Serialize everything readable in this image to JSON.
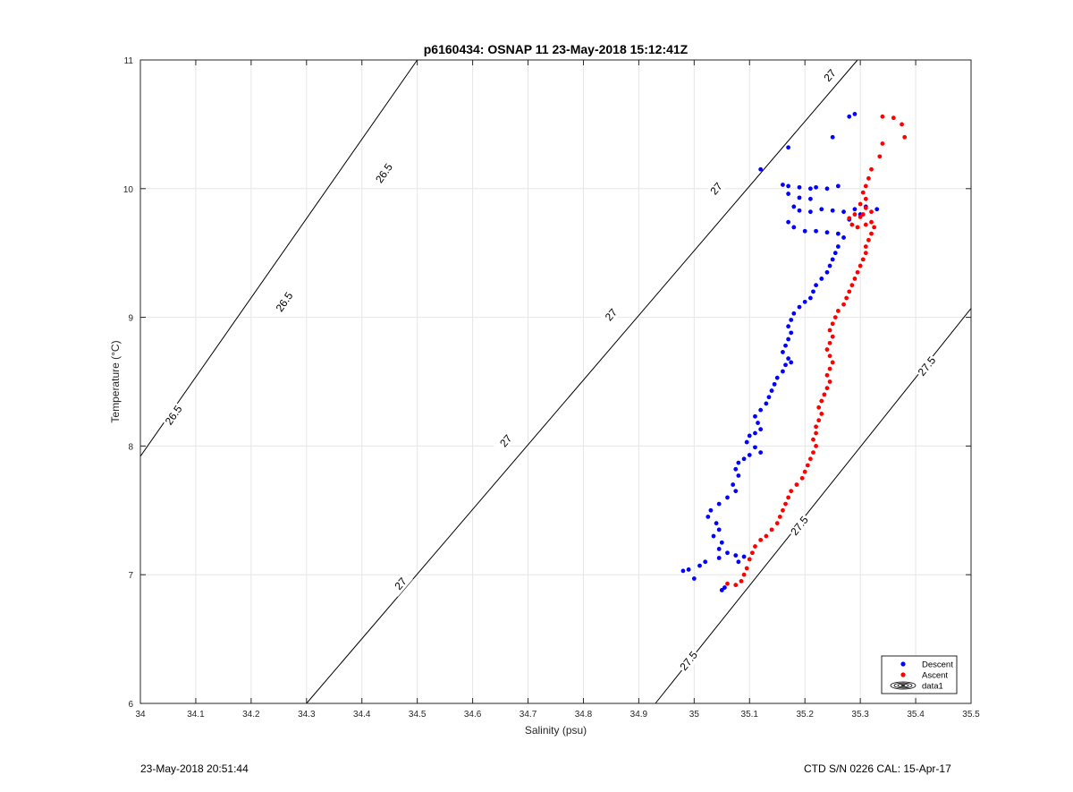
{
  "chart_data": {
    "type": "scatter",
    "title": "p6160434: OSNAP 11 23-May-2018 15:12:41Z",
    "xlabel": "Salinity (psu)",
    "ylabel": "Temperature (°C)",
    "xlim": [
      34,
      35.5
    ],
    "ylim": [
      6,
      11
    ],
    "xticks": [
      "34",
      "34.1",
      "34.2",
      "34.3",
      "34.4",
      "34.5",
      "34.6",
      "34.7",
      "34.8",
      "34.9",
      "35",
      "35.1",
      "35.2",
      "35.3",
      "35.4",
      "35.5"
    ],
    "yticks": [
      "6",
      "7",
      "8",
      "9",
      "10",
      "11"
    ],
    "grid": true,
    "legend_position": "bottom-right",
    "series": [
      {
        "name": "Descent",
        "color": "#0000ff",
        "marker": "dot",
        "points": [
          [
            35.29,
            10.58
          ],
          [
            35.28,
            10.56
          ],
          [
            35.25,
            10.4
          ],
          [
            35.17,
            10.32
          ],
          [
            35.12,
            10.15
          ],
          [
            35.16,
            10.03
          ],
          [
            35.17,
            10.02
          ],
          [
            35.19,
            10.01
          ],
          [
            35.21,
            10.0
          ],
          [
            35.22,
            10.01
          ],
          [
            35.24,
            10.0
          ],
          [
            35.26,
            10.02
          ],
          [
            35.17,
            9.96
          ],
          [
            35.19,
            9.93
          ],
          [
            35.21,
            9.92
          ],
          [
            35.18,
            9.86
          ],
          [
            35.19,
            9.83
          ],
          [
            35.21,
            9.82
          ],
          [
            35.23,
            9.84
          ],
          [
            35.25,
            9.83
          ],
          [
            35.27,
            9.82
          ],
          [
            35.29,
            9.84
          ],
          [
            35.31,
            9.86
          ],
          [
            35.33,
            9.84
          ],
          [
            35.3,
            9.8
          ],
          [
            35.28,
            9.76
          ],
          [
            35.17,
            9.74
          ],
          [
            35.18,
            9.7
          ],
          [
            35.2,
            9.67
          ],
          [
            35.22,
            9.67
          ],
          [
            35.24,
            9.66
          ],
          [
            35.26,
            9.65
          ],
          [
            35.27,
            9.62
          ],
          [
            35.26,
            9.55
          ],
          [
            35.255,
            9.5
          ],
          [
            35.25,
            9.45
          ],
          [
            35.245,
            9.4
          ],
          [
            35.24,
            9.35
          ],
          [
            35.23,
            9.3
          ],
          [
            35.22,
            9.25
          ],
          [
            35.215,
            9.2
          ],
          [
            35.21,
            9.15
          ],
          [
            35.2,
            9.12
          ],
          [
            35.19,
            9.08
          ],
          [
            35.18,
            9.03
          ],
          [
            35.175,
            8.98
          ],
          [
            35.17,
            8.93
          ],
          [
            35.175,
            8.88
          ],
          [
            35.17,
            8.83
          ],
          [
            35.165,
            8.78
          ],
          [
            35.16,
            8.73
          ],
          [
            35.17,
            8.68
          ],
          [
            35.175,
            8.65
          ],
          [
            35.165,
            8.63
          ],
          [
            35.16,
            8.58
          ],
          [
            35.15,
            8.53
          ],
          [
            35.145,
            8.48
          ],
          [
            35.14,
            8.43
          ],
          [
            35.135,
            8.38
          ],
          [
            35.13,
            8.33
          ],
          [
            35.12,
            8.28
          ],
          [
            35.11,
            8.23
          ],
          [
            35.115,
            8.18
          ],
          [
            35.12,
            8.13
          ],
          [
            35.11,
            8.1
          ],
          [
            35.1,
            8.08
          ],
          [
            35.095,
            8.03
          ],
          [
            35.11,
            7.99
          ],
          [
            35.12,
            7.95
          ],
          [
            35.1,
            7.93
          ],
          [
            35.09,
            7.9
          ],
          [
            35.08,
            7.87
          ],
          [
            35.075,
            7.82
          ],
          [
            35.08,
            7.77
          ],
          [
            35.07,
            7.7
          ],
          [
            35.075,
            7.65
          ],
          [
            35.06,
            7.6
          ],
          [
            35.045,
            7.55
          ],
          [
            35.03,
            7.5
          ],
          [
            35.025,
            7.45
          ],
          [
            35.04,
            7.4
          ],
          [
            35.045,
            7.35
          ],
          [
            35.035,
            7.3
          ],
          [
            35.05,
            7.25
          ],
          [
            35.045,
            7.2
          ],
          [
            35.06,
            7.17
          ],
          [
            35.075,
            7.15
          ],
          [
            35.09,
            7.14
          ],
          [
            35.045,
            7.13
          ],
          [
            35.02,
            7.1
          ],
          [
            35.01,
            7.07
          ],
          [
            34.99,
            7.04
          ],
          [
            34.98,
            7.03
          ],
          [
            35.0,
            6.97
          ],
          [
            35.055,
            6.9
          ],
          [
            35.05,
            6.88
          ],
          [
            35.08,
            7.1
          ]
        ]
      },
      {
        "name": "Ascent",
        "color": "#ff0000",
        "marker": "dot",
        "points": [
          [
            35.34,
            10.56
          ],
          [
            35.36,
            10.55
          ],
          [
            35.375,
            10.5
          ],
          [
            35.38,
            10.4
          ],
          [
            35.34,
            10.35
          ],
          [
            35.335,
            10.25
          ],
          [
            35.32,
            10.15
          ],
          [
            35.315,
            10.08
          ],
          [
            35.31,
            10.02
          ],
          [
            35.305,
            9.97
          ],
          [
            35.31,
            9.92
          ],
          [
            35.3,
            9.88
          ],
          [
            35.31,
            9.85
          ],
          [
            35.32,
            9.82
          ],
          [
            35.305,
            9.8
          ],
          [
            35.3,
            9.78
          ],
          [
            35.29,
            9.8
          ],
          [
            35.28,
            9.77
          ],
          [
            35.285,
            9.72
          ],
          [
            35.295,
            9.7
          ],
          [
            35.31,
            9.72
          ],
          [
            35.32,
            9.74
          ],
          [
            35.325,
            9.7
          ],
          [
            35.32,
            9.65
          ],
          [
            35.315,
            9.6
          ],
          [
            35.31,
            9.55
          ],
          [
            35.31,
            9.5
          ],
          [
            35.305,
            9.45
          ],
          [
            35.3,
            9.4
          ],
          [
            35.295,
            9.35
          ],
          [
            35.29,
            9.3
          ],
          [
            35.285,
            9.25
          ],
          [
            35.28,
            9.2
          ],
          [
            35.275,
            9.15
          ],
          [
            35.27,
            9.1
          ],
          [
            35.26,
            9.05
          ],
          [
            35.255,
            9.0
          ],
          [
            35.25,
            8.95
          ],
          [
            35.245,
            8.9
          ],
          [
            35.25,
            8.85
          ],
          [
            35.245,
            8.8
          ],
          [
            35.24,
            8.75
          ],
          [
            35.245,
            8.7
          ],
          [
            35.25,
            8.65
          ],
          [
            35.245,
            8.6
          ],
          [
            35.24,
            8.55
          ],
          [
            35.245,
            8.5
          ],
          [
            35.24,
            8.45
          ],
          [
            35.235,
            8.4
          ],
          [
            35.23,
            8.35
          ],
          [
            35.225,
            8.3
          ],
          [
            35.23,
            8.25
          ],
          [
            35.225,
            8.2
          ],
          [
            35.22,
            8.15
          ],
          [
            35.22,
            8.1
          ],
          [
            35.215,
            8.05
          ],
          [
            35.22,
            8.0
          ],
          [
            35.215,
            7.95
          ],
          [
            35.21,
            7.9
          ],
          [
            35.205,
            7.85
          ],
          [
            35.2,
            7.8
          ],
          [
            35.195,
            7.75
          ],
          [
            35.185,
            7.7
          ],
          [
            35.175,
            7.65
          ],
          [
            35.17,
            7.6
          ],
          [
            35.165,
            7.55
          ],
          [
            35.16,
            7.5
          ],
          [
            35.155,
            7.45
          ],
          [
            35.15,
            7.4
          ],
          [
            35.14,
            7.35
          ],
          [
            35.13,
            7.3
          ],
          [
            35.12,
            7.27
          ],
          [
            35.11,
            7.22
          ],
          [
            35.105,
            7.17
          ],
          [
            35.1,
            7.12
          ],
          [
            35.095,
            7.05
          ],
          [
            35.09,
            7.0
          ],
          [
            35.085,
            6.95
          ],
          [
            35.075,
            6.92
          ],
          [
            35.06,
            6.93
          ]
        ]
      }
    ],
    "contours": [
      {
        "label": "26.5",
        "s0": 34.0,
        "t0": 7.92,
        "s1": 34.5,
        "t1": 11.0,
        "labels_at": [
          [
            34.06,
            8.24
          ],
          [
            34.26,
            9.12
          ],
          [
            34.44,
            10.12
          ]
        ]
      },
      {
        "label": "27",
        "s0": 34.3,
        "t0": 6.0,
        "s1": 35.295,
        "t1": 11.0,
        "labels_at": [
          [
            34.47,
            6.93
          ],
          [
            34.66,
            8.04
          ],
          [
            34.85,
            9.02
          ],
          [
            35.04,
            10.0
          ],
          [
            35.245,
            10.88
          ]
        ]
      },
      {
        "label": "27.5",
        "s0": 34.93,
        "t0": 6.0,
        "s1": 35.5,
        "t1": 9.07,
        "labels_at": [
          [
            34.99,
            6.33
          ],
          [
            35.19,
            7.38
          ],
          [
            35.42,
            8.62
          ]
        ]
      }
    ],
    "legend_entries": [
      "Descent",
      "Ascent",
      "data1"
    ]
  },
  "footer": {
    "left": "23-May-2018 20:51:44",
    "right": "CTD S/N 0226  CAL: 15-Apr-17"
  }
}
